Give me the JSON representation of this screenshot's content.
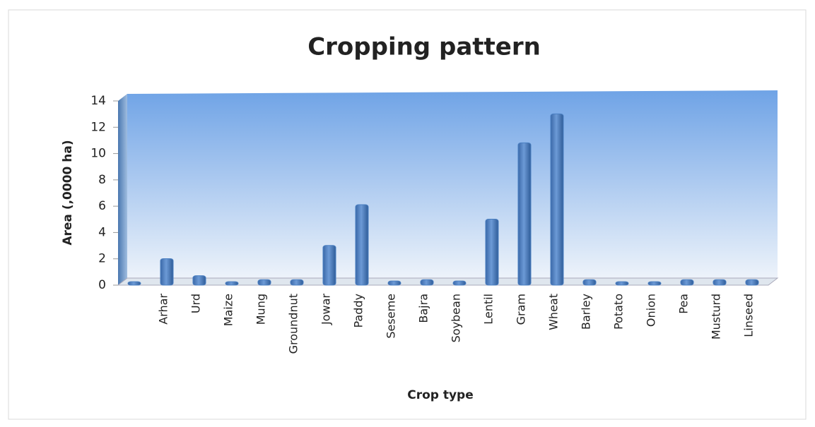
{
  "chart_data": {
    "type": "bar",
    "title": "Cropping pattern",
    "x_label": "Crop type",
    "y_label": "Area (,0000 ha)",
    "categories": [
      null,
      "Arhar",
      "Urd",
      "Maize",
      "Mung",
      "Groundnut",
      "Jowar",
      "Paddy",
      "Seseme",
      "Bajra",
      "Soybean",
      "Lentil",
      "Gram",
      "Wheat",
      "Barley",
      "Potato",
      "Onion",
      "Pea",
      "Musturd",
      "Linseed"
    ],
    "values": [
      0.05,
      1.8,
      0.5,
      0.05,
      0.2,
      0.2,
      2.8,
      5.9,
      0.1,
      0.2,
      0.1,
      4.8,
      10.6,
      12.8,
      0.2,
      0.05,
      0.05,
      0.2,
      0.2,
      0.2
    ],
    "color": "#4a7fc1",
    "ylim": [
      0,
      14
    ],
    "yticks": [
      0,
      2,
      4,
      6,
      8,
      10,
      12,
      14
    ],
    "grid": false
  }
}
